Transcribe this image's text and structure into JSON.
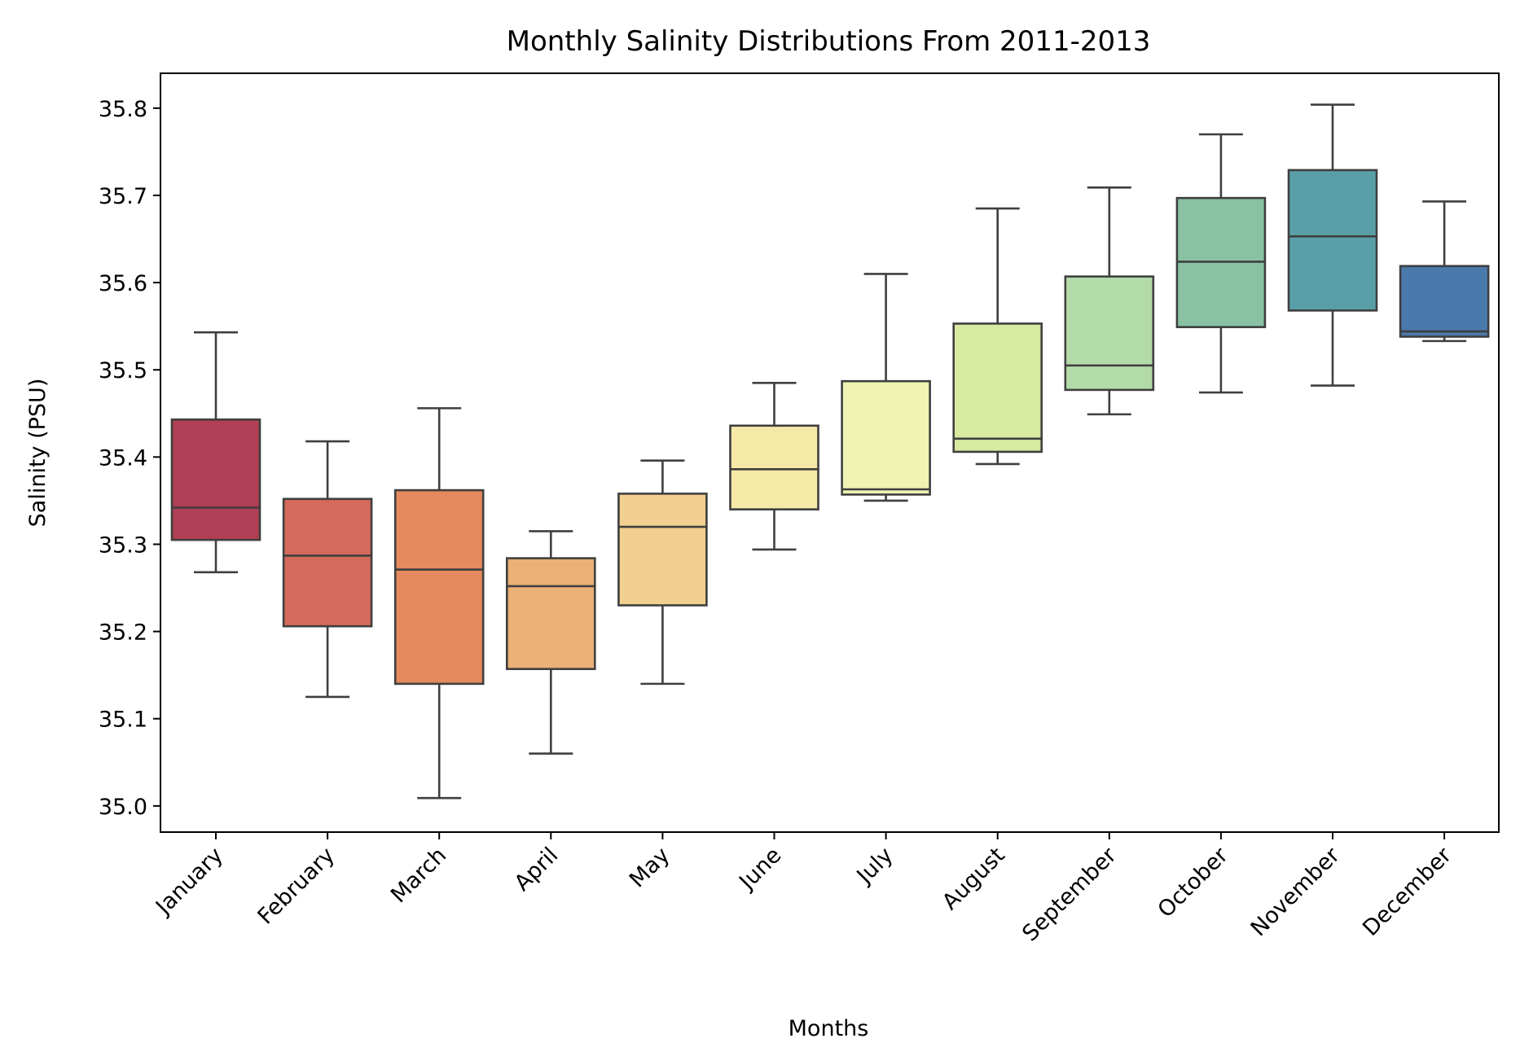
{
  "chart_data": {
    "type": "box",
    "title": "Monthly Salinity Distributions From 2011-2013",
    "xlabel": "Months",
    "ylabel": "Salinity (PSU)",
    "ylim": [
      34.97,
      35.84
    ],
    "yticks": [
      35.0,
      35.1,
      35.2,
      35.3,
      35.4,
      35.5,
      35.6,
      35.7,
      35.8
    ],
    "ytick_labels": [
      "35.0",
      "35.1",
      "35.2",
      "35.3",
      "35.4",
      "35.5",
      "35.6",
      "35.7",
      "35.8"
    ],
    "xtick_rotation_deg": 45,
    "grid": false,
    "legend": "none",
    "line_color": "#3f3f3f",
    "categories": [
      "January",
      "February",
      "March",
      "April",
      "May",
      "June",
      "July",
      "August",
      "September",
      "October",
      "November",
      "December"
    ],
    "boxes": [
      {
        "month": "January",
        "min": 35.268,
        "q1": 35.305,
        "median": 35.342,
        "q3": 35.443,
        "max": 35.543,
        "color": "#b13f55"
      },
      {
        "month": "February",
        "min": 35.125,
        "q1": 35.206,
        "median": 35.287,
        "q3": 35.352,
        "max": 35.418,
        "color": "#d46a5c"
      },
      {
        "month": "March",
        "min": 35.009,
        "q1": 35.14,
        "median": 35.271,
        "q3": 35.362,
        "max": 35.456,
        "color": "#e5895e"
      },
      {
        "month": "April",
        "min": 35.06,
        "q1": 35.157,
        "median": 35.252,
        "q3": 35.284,
        "max": 35.315,
        "color": "#ebb075"
      },
      {
        "month": "May",
        "min": 35.14,
        "q1": 35.23,
        "median": 35.32,
        "q3": 35.358,
        "max": 35.396,
        "color": "#f1d091"
      },
      {
        "month": "June",
        "min": 35.294,
        "q1": 35.34,
        "median": 35.386,
        "q3": 35.436,
        "max": 35.485,
        "color": "#f6e9a8"
      },
      {
        "month": "July",
        "min": 35.35,
        "q1": 35.357,
        "median": 35.363,
        "q3": 35.487,
        "max": 35.61,
        "color": "#eff3b3"
      },
      {
        "month": "August",
        "min": 35.392,
        "q1": 35.406,
        "median": 35.421,
        "q3": 35.553,
        "max": 35.685,
        "color": "#d8e9a1"
      },
      {
        "month": "September",
        "min": 35.449,
        "q1": 35.477,
        "median": 35.505,
        "q3": 35.607,
        "max": 35.709,
        "color": "#b3dbaa"
      },
      {
        "month": "October",
        "min": 35.474,
        "q1": 35.549,
        "median": 35.624,
        "q3": 35.697,
        "max": 35.77,
        "color": "#88c2a3"
      },
      {
        "month": "November",
        "min": 35.482,
        "q1": 35.568,
        "median": 35.653,
        "q3": 35.729,
        "max": 35.804,
        "color": "#5a9fa7"
      },
      {
        "month": "December",
        "min": 35.533,
        "q1": 35.538,
        "median": 35.544,
        "q3": 35.619,
        "max": 35.693,
        "color": "#4a7aab"
      }
    ]
  }
}
